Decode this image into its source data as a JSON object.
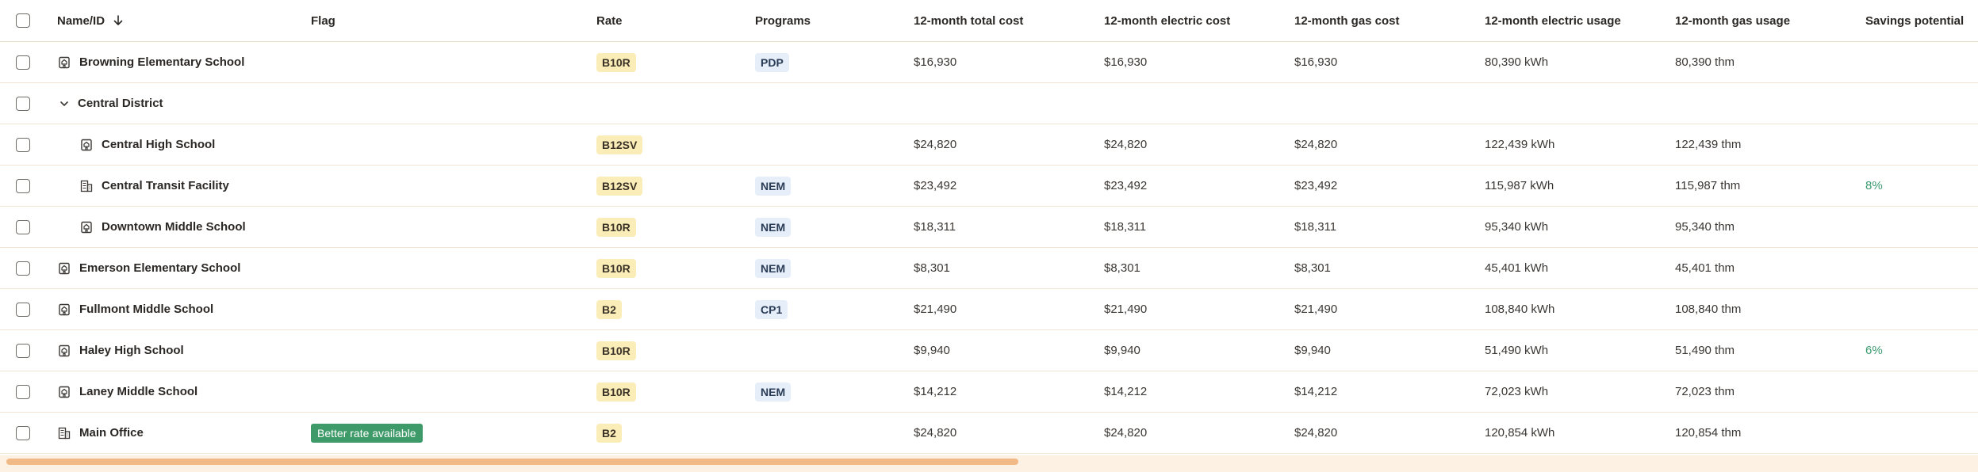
{
  "columns": {
    "name": "Name/ID",
    "flag": "Flag",
    "rate": "Rate",
    "programs": "Programs",
    "total_cost": "12-month total cost",
    "electric_cost": "12-month electric cost",
    "gas_cost": "12-month gas cost",
    "electric_usage": "12-month electric usage",
    "gas_usage": "12-month gas usage",
    "savings": "Savings potential"
  },
  "rows": [
    {
      "name": "Browning Elementary School",
      "flag": "",
      "rate": "B10R",
      "program": "PDP",
      "total": "$16,930",
      "elec_cost": "$16,930",
      "gas_cost": "$16,930",
      "elec_usage": "80,390 kWh",
      "gas_usage": "80,390 thm",
      "savings": ""
    },
    {
      "name": "Central District"
    },
    {
      "name": "Central High School",
      "flag": "",
      "rate": "B12SV",
      "program": "",
      "total": "$24,820",
      "elec_cost": "$24,820",
      "gas_cost": "$24,820",
      "elec_usage": "122,439 kWh",
      "gas_usage": "122,439 thm",
      "savings": ""
    },
    {
      "name": "Central Transit Facility",
      "flag": "",
      "rate": "B12SV",
      "program": "NEM",
      "total": "$23,492",
      "elec_cost": "$23,492",
      "gas_cost": "$23,492",
      "elec_usage": "115,987 kWh",
      "gas_usage": "115,987 thm",
      "savings": "8%"
    },
    {
      "name": "Downtown Middle School",
      "flag": "",
      "rate": "B10R",
      "program": "NEM",
      "total": "$18,311",
      "elec_cost": "$18,311",
      "gas_cost": "$18,311",
      "elec_usage": "95,340 kWh",
      "gas_usage": "95,340 thm",
      "savings": ""
    },
    {
      "name": "Emerson Elementary School",
      "flag": "",
      "rate": "B10R",
      "program": "NEM",
      "total": "$8,301",
      "elec_cost": "$8,301",
      "gas_cost": "$8,301",
      "elec_usage": "45,401 kWh",
      "gas_usage": "45,401 thm",
      "savings": ""
    },
    {
      "name": "Fullmont Middle School",
      "flag": "",
      "rate": "B2",
      "program": "CP1",
      "total": "$21,490",
      "elec_cost": "$21,490",
      "gas_cost": "$21,490",
      "elec_usage": "108,840 kWh",
      "gas_usage": "108,840 thm",
      "savings": ""
    },
    {
      "name": "Haley High School",
      "flag": "",
      "rate": "B10R",
      "program": "",
      "total": "$9,940",
      "elec_cost": "$9,940",
      "gas_cost": "$9,940",
      "elec_usage": "51,490 kWh",
      "gas_usage": "51,490 thm",
      "savings": "6%"
    },
    {
      "name": "Laney Middle School",
      "flag": "",
      "rate": "B10R",
      "program": "NEM",
      "total": "$14,212",
      "elec_cost": "$14,212",
      "gas_cost": "$14,212",
      "elec_usage": "72,023 kWh",
      "gas_usage": "72,023 thm",
      "savings": ""
    },
    {
      "name": "Main Office",
      "flag": "Better rate available",
      "rate": "B2",
      "program": "",
      "total": "$24,820",
      "elec_cost": "$24,820",
      "gas_cost": "$24,820",
      "elec_usage": "120,854 kWh",
      "gas_usage": "120,854 thm",
      "savings": ""
    }
  ],
  "colors": {
    "flag_bg": "#3f9a6a",
    "rate_chip_bg": "#fbedb8",
    "program_chip_bg": "#e6eefa",
    "savings_text": "#3a9a6e",
    "scrollbar_thumb": "#f1b985"
  }
}
